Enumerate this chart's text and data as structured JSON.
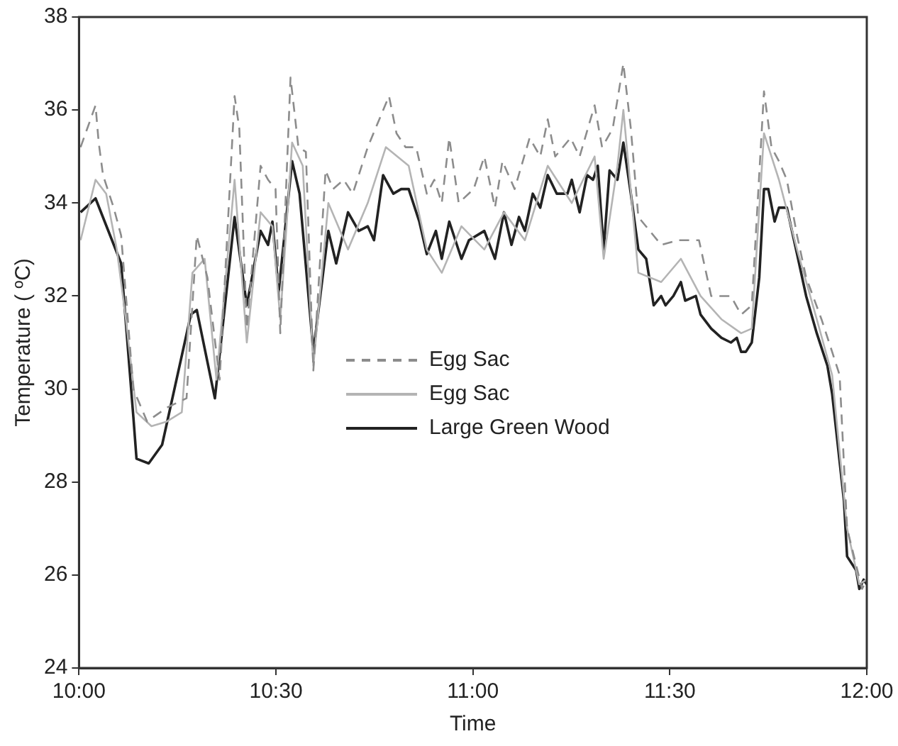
{
  "chart_data": {
    "type": "line",
    "xlabel": "Time",
    "ylabel": "Temperature ( ºC)",
    "xlim": [
      10,
      12
    ],
    "xticks": [
      {
        "value": 10,
        "label": "10:00"
      },
      {
        "value": 10.5,
        "label": "10:30"
      },
      {
        "value": 11,
        "label": "11:00"
      },
      {
        "value": 11.5,
        "label": "11:30"
      },
      {
        "value": 12,
        "label": "12:00"
      }
    ],
    "ylim": [
      24,
      38
    ],
    "yticks": [
      24,
      26,
      28,
      30,
      32,
      34,
      36,
      38
    ],
    "grid": false,
    "legend": "center",
    "marker": "none",
    "series": [
      {
        "name": "Egg Sac",
        "color": "#8c8c8c",
        "line_style": "dashed",
        "x": [
          10.004,
          10.042,
          10.05,
          10.061,
          10.088,
          10.107,
          10.138,
          10.173,
          10.223,
          10.273,
          10.299,
          10.326,
          10.357,
          10.395,
          10.407,
          10.426,
          10.461,
          10.48,
          10.499,
          10.511,
          10.537,
          10.557,
          10.576,
          10.595,
          10.626,
          10.645,
          10.672,
          10.695,
          10.733,
          10.787,
          10.806,
          10.829,
          10.856,
          10.883,
          10.902,
          10.921,
          10.94,
          10.964,
          11.002,
          11.029,
          11.056,
          11.075,
          11.106,
          11.144,
          11.171,
          11.19,
          11.209,
          11.248,
          11.271,
          11.309,
          11.328,
          11.355,
          11.382,
          11.401,
          11.42,
          11.478,
          11.52,
          11.574,
          11.605,
          11.655,
          11.681,
          11.708,
          11.739,
          11.758,
          11.777,
          11.797,
          11.823,
          11.846,
          11.885,
          11.912,
          11.931,
          11.95,
          11.988,
          12.0
        ],
        "values": [
          35.2,
          36.1,
          35.3,
          34.6,
          33.9,
          33.3,
          30.0,
          29.3,
          29.6,
          29.8,
          33.3,
          32.4,
          30.2,
          36.3,
          35.6,
          31.3,
          34.8,
          34.5,
          34.3,
          31.2,
          36.7,
          35.2,
          35.1,
          30.4,
          34.7,
          34.3,
          34.5,
          34.2,
          35.2,
          36.3,
          35.5,
          35.2,
          35.2,
          34.2,
          34.5,
          34.0,
          35.4,
          34.0,
          34.3,
          35.0,
          33.9,
          34.9,
          34.3,
          35.4,
          35.0,
          35.8,
          35.0,
          35.4,
          35.0,
          36.1,
          35.2,
          35.6,
          37.0,
          35.6,
          33.7,
          33.1,
          33.2,
          33.2,
          32.0,
          32.0,
          31.6,
          31.8,
          36.4,
          35.2,
          34.9,
          34.5,
          33.3,
          32.4,
          31.5,
          30.8,
          30.3,
          27.0,
          25.7,
          25.9
        ]
      },
      {
        "name": "Egg Sac",
        "color": "#b4b4b4",
        "line_style": "solid",
        "x": [
          10.004,
          10.042,
          10.069,
          10.096,
          10.119,
          10.146,
          10.184,
          10.223,
          10.261,
          10.288,
          10.319,
          10.349,
          10.395,
          10.426,
          10.461,
          10.491,
          10.511,
          10.541,
          10.568,
          10.595,
          10.633,
          10.683,
          10.733,
          10.779,
          10.837,
          10.883,
          10.921,
          10.971,
          11.029,
          11.079,
          11.132,
          11.19,
          11.251,
          11.309,
          11.332,
          11.367,
          11.382,
          11.42,
          11.478,
          11.528,
          11.578,
          11.631,
          11.681,
          11.708,
          11.739,
          11.777,
          11.823,
          11.873,
          11.912,
          11.95,
          11.981,
          12.0
        ],
        "values": [
          33.2,
          34.5,
          34.2,
          33.0,
          31.5,
          29.5,
          29.2,
          29.3,
          29.5,
          32.5,
          32.8,
          30.2,
          34.5,
          31.0,
          33.8,
          33.5,
          31.5,
          35.3,
          34.8,
          30.5,
          34.0,
          33.0,
          34.0,
          35.2,
          34.8,
          33.0,
          32.5,
          33.5,
          33.0,
          33.8,
          33.2,
          34.8,
          34.0,
          35.0,
          32.8,
          34.8,
          36.0,
          32.5,
          32.3,
          32.8,
          32.0,
          31.5,
          31.2,
          31.3,
          35.5,
          34.5,
          33.0,
          31.5,
          30.3,
          27.0,
          25.8,
          25.9
        ]
      },
      {
        "name": "Large Green Wood",
        "color": "#222222",
        "line_style": "solid",
        "x": [
          10.004,
          10.042,
          10.107,
          10.138,
          10.146,
          10.177,
          10.211,
          10.284,
          10.299,
          10.345,
          10.395,
          10.426,
          10.461,
          10.48,
          10.491,
          10.507,
          10.541,
          10.56,
          10.595,
          10.633,
          10.653,
          10.683,
          10.71,
          10.733,
          10.749,
          10.772,
          10.798,
          10.818,
          10.837,
          10.864,
          10.883,
          10.906,
          10.921,
          10.94,
          10.971,
          10.99,
          11.029,
          11.056,
          11.079,
          11.098,
          11.117,
          11.132,
          11.152,
          11.171,
          11.19,
          11.213,
          11.24,
          11.251,
          11.271,
          11.29,
          11.305,
          11.317,
          11.332,
          11.347,
          11.367,
          11.382,
          11.401,
          11.42,
          11.44,
          11.459,
          11.478,
          11.489,
          11.509,
          11.528,
          11.539,
          11.566,
          11.578,
          11.605,
          11.631,
          11.655,
          11.67,
          11.681,
          11.693,
          11.708,
          11.727,
          11.739,
          11.75,
          11.766,
          11.777,
          11.797,
          11.823,
          11.846,
          11.873,
          11.9,
          11.912,
          11.942,
          11.95,
          11.973,
          11.981,
          11.992,
          12.0
        ],
        "values": [
          33.8,
          34.1,
          32.7,
          29.4,
          28.5,
          28.4,
          28.8,
          31.6,
          31.7,
          29.8,
          33.7,
          31.8,
          33.4,
          33.1,
          33.6,
          32.1,
          34.9,
          34.2,
          30.8,
          33.4,
          32.7,
          33.8,
          33.4,
          33.5,
          33.2,
          34.6,
          34.2,
          34.3,
          34.3,
          33.6,
          32.9,
          33.4,
          32.8,
          33.6,
          32.8,
          33.2,
          33.4,
          32.8,
          33.8,
          33.1,
          33.7,
          33.4,
          34.2,
          33.9,
          34.6,
          34.2,
          34.2,
          34.5,
          33.8,
          34.6,
          34.5,
          34.8,
          33.0,
          34.7,
          34.5,
          35.3,
          34.2,
          33.0,
          32.8,
          31.8,
          32.0,
          31.8,
          32.0,
          32.3,
          31.9,
          32.0,
          31.6,
          31.3,
          31.1,
          31.0,
          31.1,
          30.8,
          30.8,
          31.0,
          32.4,
          34.3,
          34.3,
          33.6,
          33.9,
          33.9,
          32.9,
          32.0,
          31.2,
          30.5,
          29.9,
          27.6,
          26.4,
          26.1,
          25.7,
          25.9,
          25.8
        ]
      }
    ]
  }
}
